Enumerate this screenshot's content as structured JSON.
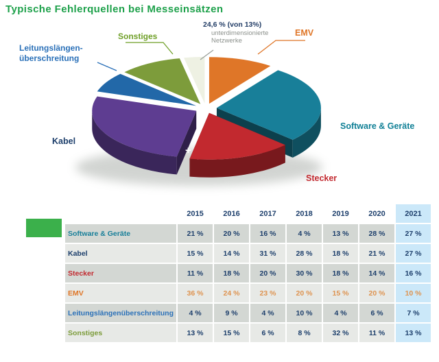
{
  "title": "Typische Fehlerquellen bei Messeinsätzen",
  "colors": {
    "title": "#1ea14b",
    "highlight_column_bg": "#cbe8f9",
    "green_square": "#3bb04b"
  },
  "chart_data": {
    "type": "pie",
    "title": "Typische Fehlerquellen bei Messeinsätzen",
    "unit": "%",
    "year_shown": "2021",
    "slices": [
      {
        "label": "EMV",
        "value": 10,
        "color": "#df7628"
      },
      {
        "label": "Software & Geräte",
        "value": 27,
        "color": "#187f99"
      },
      {
        "label": "Stecker",
        "value": 16,
        "color": "#c2292f"
      },
      {
        "label": "Kabel",
        "value": 27,
        "color": "#5e3d91"
      },
      {
        "label": "Leitungslängenüberschreitung",
        "value": 7,
        "color": "#2268a8"
      },
      {
        "label": "Sonstiges",
        "value": 9.8,
        "color": "#7d9c3b"
      },
      {
        "label": "unterdimensionierte Netzwerke",
        "value": 3.2,
        "color": "#eef1e3"
      }
    ],
    "annotation": {
      "bold": "24,6 % (von 13%)",
      "line1": "unterdimensionierte",
      "line2": "Netzwerke",
      "applies_to": "Sonstiges"
    },
    "pie_labels": {
      "sonstiges": "Sonstiges",
      "emv": "EMV",
      "software": "Software & Geräte",
      "stecker": "Stecker",
      "kabel": "Kabel",
      "leitung1": "Leitungslängen-",
      "leitung2": "überschreitung"
    },
    "plus_marker": "+",
    "table": {
      "years": [
        "2015",
        "2016",
        "2017",
        "2018",
        "2019",
        "2020",
        "2021"
      ],
      "highlight_year": "2021",
      "value_suffix": " %",
      "default_value_color": "#1c3e6b",
      "rows": [
        {
          "label": "Software & Geräte",
          "color": "#187f99",
          "values": [
            21,
            20,
            16,
            4,
            13,
            28,
            27
          ]
        },
        {
          "label": "Kabel",
          "color": "#1c3e6b",
          "values": [
            15,
            14,
            31,
            28,
            18,
            21,
            27
          ]
        },
        {
          "label": "Stecker",
          "color": "#c2292f",
          "values": [
            11,
            18,
            20,
            30,
            18,
            14,
            16
          ]
        },
        {
          "label": "EMV",
          "color": "#df7628",
          "value_color": "#de9350",
          "values": [
            36,
            24,
            23,
            20,
            15,
            20,
            10
          ]
        },
        {
          "label": "Leitungslängenüberschreitung",
          "color": "#2a70b8",
          "values": [
            4,
            9,
            4,
            10,
            4,
            6,
            7
          ]
        },
        {
          "label": "Sonstiges",
          "color": "#7d9c3b",
          "values": [
            13,
            15,
            6,
            8,
            32,
            11,
            13
          ]
        }
      ]
    }
  }
}
